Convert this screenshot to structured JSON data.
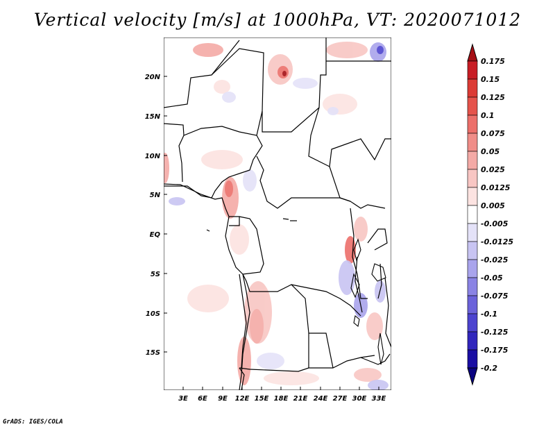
{
  "title": "Vertical velocity [m/s] at 1000hPa, VT: 2020071012",
  "credit": "GrADS: IGES/COLA",
  "map": {
    "lat_labels": [
      "20N",
      "15N",
      "10N",
      "5N",
      "EQ",
      "5S",
      "10S",
      "15S"
    ],
    "lon_labels": [
      "3E",
      "6E",
      "9E",
      "12E",
      "15E",
      "18E",
      "21E",
      "24E",
      "27E",
      "30E",
      "33E"
    ]
  },
  "colorbar": {
    "labels": [
      "0.175",
      "0.15",
      "0.125",
      "0.1",
      "0.075",
      "0.05",
      "0.025",
      "0.0125",
      "0.005",
      "-0.005",
      "-0.0125",
      "-0.025",
      "-0.05",
      "-0.075",
      "-0.1",
      "-0.125",
      "-0.175",
      "-0.2"
    ],
    "colors": [
      "#a50f15",
      "#c81d25",
      "#dc3b35",
      "#e5534b",
      "#ec6f6a",
      "#f08d88",
      "#f4aaa6",
      "#f8c6c3",
      "#fce3e1",
      "#ffffff",
      "#e4e2f8",
      "#c8c4f2",
      "#a9a4ec",
      "#8a83e4",
      "#6b62da",
      "#4c43cf",
      "#3126bd",
      "#1a0ea3",
      "#0a0380"
    ]
  }
}
